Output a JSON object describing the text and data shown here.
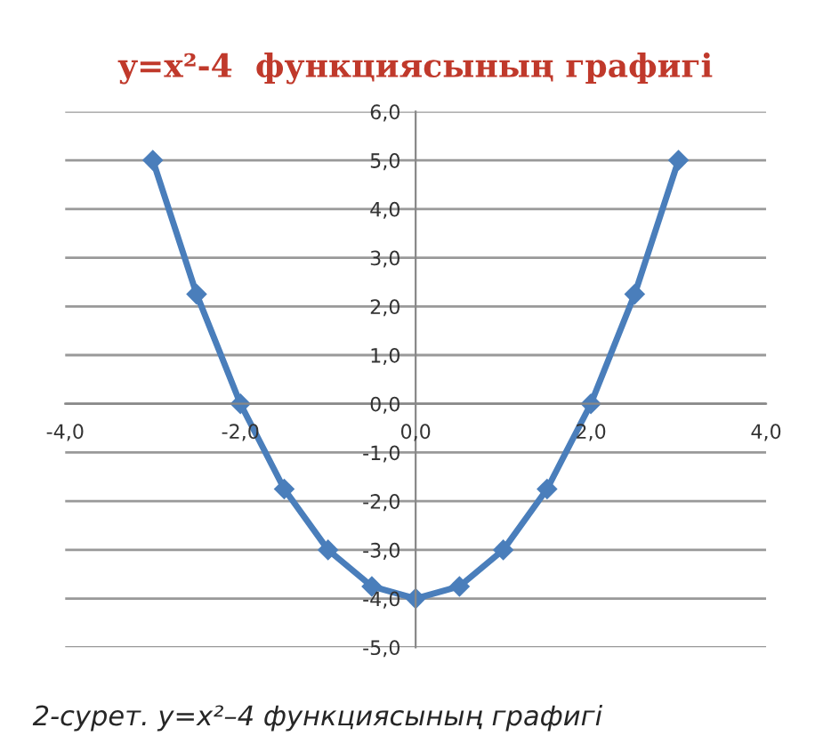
{
  "chart_data": {
    "type": "line",
    "title": "y=x²-4  функциясының графигі",
    "x": [
      -3,
      -2.5,
      -2,
      -1.5,
      -1,
      -0.5,
      0,
      0.5,
      1,
      1.5,
      2,
      2.5,
      3
    ],
    "series": [
      {
        "color": "#4a7ebb",
        "values": [
          5,
          2.25,
          0,
          -1.75,
          -3,
          -3.75,
          -4,
          -3.75,
          -3,
          -1.75,
          0,
          2.25,
          5
        ]
      }
    ],
    "xlim": [
      -4,
      4
    ],
    "ylim": [
      -5,
      6
    ],
    "xticks": [
      {
        "value": -4,
        "label": "-4,0"
      },
      {
        "value": -2,
        "label": "-2,0"
      },
      {
        "value": 0,
        "label": "0,0"
      },
      {
        "value": 2,
        "label": "2,0"
      },
      {
        "value": 4,
        "label": "4,0"
      }
    ],
    "yticks": [
      {
        "value": -5,
        "label": "-5,0"
      },
      {
        "value": -4,
        "label": "-4,0"
      },
      {
        "value": -3,
        "label": "-3,0"
      },
      {
        "value": -2,
        "label": "-2,0"
      },
      {
        "value": -1,
        "label": "-1,0"
      },
      {
        "value": 0,
        "label": "0,0"
      },
      {
        "value": 1,
        "label": "1,0"
      },
      {
        "value": 2,
        "label": "2,0"
      },
      {
        "value": 3,
        "label": "3,0"
      },
      {
        "value": 4,
        "label": "4,0"
      },
      {
        "value": 5,
        "label": "5,0"
      },
      {
        "value": 6,
        "label": "6,0"
      }
    ],
    "grid": "y",
    "marker": "diamond",
    "line_style": "solid",
    "annotations": [
      "2-сурет. y=x²–4 функциясының графигі"
    ]
  }
}
